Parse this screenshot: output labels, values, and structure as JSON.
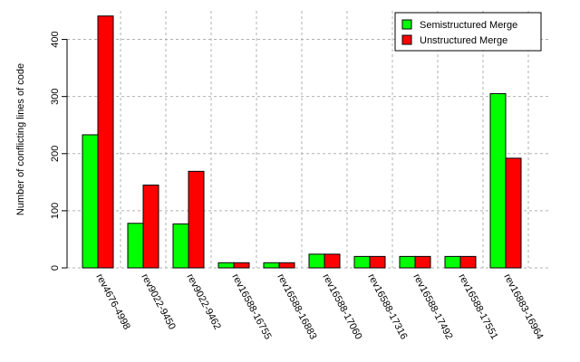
{
  "chart_data": {
    "type": "bar",
    "ylabel": "Number of conflicting lines of code",
    "xlabel": "",
    "ylim": [
      0,
      450
    ],
    "yticks": [
      0,
      100,
      200,
      300,
      400
    ],
    "grid": true,
    "legend_position": "top-right",
    "categories": [
      "rev4676-4998",
      "rev9022-9450",
      "rev9022-9462",
      "rev16588-16755",
      "rev16588-16883",
      "rev16588-17060",
      "rev16588-17316",
      "rev16588-17492",
      "rev16588-17551",
      "rev16883-16964"
    ],
    "series": [
      {
        "name": "Semistructured Merge",
        "color": "#00ff00",
        "values": [
          233,
          78,
          77,
          9,
          9,
          24,
          20,
          20,
          20,
          305
        ]
      },
      {
        "name": "Unstructured Merge",
        "color": "#ff0000",
        "values": [
          441,
          145,
          169,
          9,
          9,
          24,
          20,
          20,
          20,
          192
        ]
      }
    ]
  }
}
